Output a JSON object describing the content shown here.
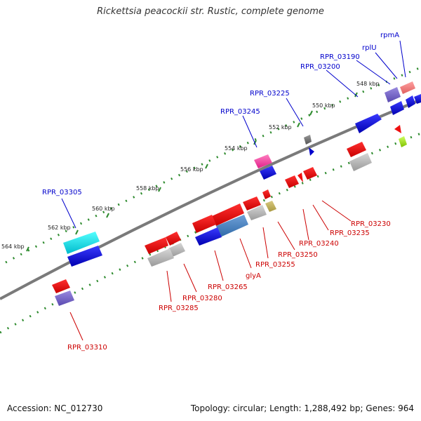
{
  "title": "Rickettsia peacockii str. Rustic, complete genome",
  "footer": {
    "accession": "Accession: NC_012730",
    "summary": "Topology: circular; Length: 1,288,492 bp; Genes: 964"
  },
  "colors": {
    "backbone": "#808080",
    "tick": "#2e8b2e",
    "label_blue": "#0000cc",
    "label_red": "#cc0000"
  },
  "ticks": [
    "548 kbp",
    "550 kbp",
    "552 kbp",
    "554 kbp",
    "556 kbp",
    "558 kbp",
    "560 kbp",
    "562 kbp",
    "564 kbp"
  ],
  "labels_top": [
    "rpmA",
    "rplU",
    "RPR_03190",
    "RPR_03200",
    "RPR_03225",
    "RPR_03245",
    "RPR_03305"
  ],
  "labels_bottom": [
    "RPR_03230",
    "RPR_03235",
    "RPR_03240",
    "RPR_03250",
    "RPR_03255",
    "glyA",
    "RPR_03265",
    "RPR_03280",
    "RPR_03285",
    "RPR_03310"
  ]
}
